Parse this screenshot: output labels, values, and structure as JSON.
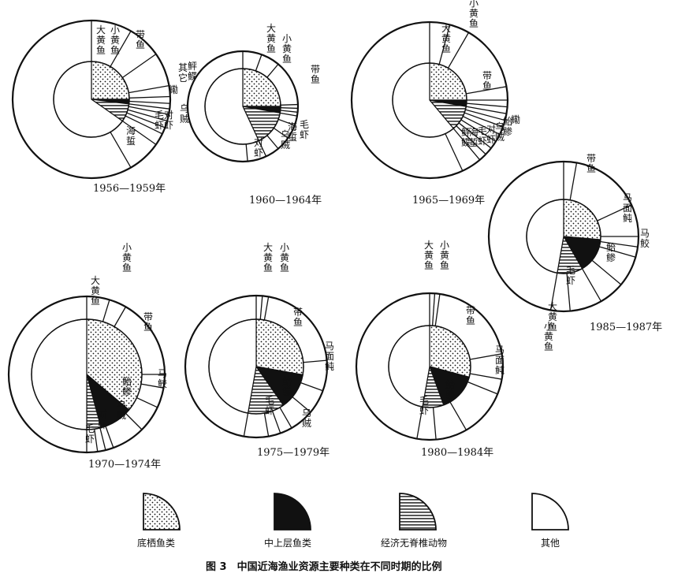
{
  "figure": {
    "caption": "图 3　中国近海渔业资源主要种类在不同时期的比例"
  },
  "legend": [
    {
      "key": "demersal",
      "label": "底栖鱼类",
      "pattern": "dots"
    },
    {
      "key": "pelagic",
      "label": "中上层鱼类",
      "pattern": "solid"
    },
    {
      "key": "invertebrate",
      "label": "经济无脊椎动物",
      "pattern": "hlines"
    },
    {
      "key": "other",
      "label": "其他",
      "pattern": "empty"
    }
  ],
  "chart_data": [
    {
      "type": "pie",
      "period": "1956—1959年",
      "inner": [
        {
          "group": "demersal",
          "start": 0,
          "end": 90
        },
        {
          "group": "pelagic",
          "start": 90,
          "end": 97
        },
        {
          "group": "invertebrate",
          "start": 97,
          "end": 125
        },
        {
          "group": "other",
          "start": 125,
          "end": 360
        }
      ],
      "outer_boundaries": [
        0,
        30,
        55,
        80,
        88,
        93,
        97,
        101,
        106,
        111,
        116,
        125,
        150
      ],
      "labels": [
        "大黄鱼",
        "小黄鱼",
        "带鱼",
        "鲆鲽",
        "其它",
        "鳓",
        "乌贼",
        "对虾",
        "毛虾",
        "海蜇"
      ]
    },
    {
      "type": "pie",
      "period": "1960—1964年",
      "inner": [
        {
          "group": "demersal",
          "start": 0,
          "end": 90
        },
        {
          "group": "pelagic",
          "start": 90,
          "end": 100
        },
        {
          "group": "invertebrate",
          "start": 100,
          "end": 155
        },
        {
          "group": "other",
          "start": 155,
          "end": 360
        }
      ],
      "outer_boundaries": [
        0,
        20,
        40,
        88,
        92,
        96,
        100,
        110,
        125,
        140,
        155,
        175
      ],
      "labels": [
        "大黄鱼",
        "小黄鱼",
        "带鱼",
        "毛虾",
        "海蜇",
        "乌贼",
        "对虾"
      ]
    },
    {
      "type": "pie",
      "period": "1965—1969年",
      "inner": [
        {
          "group": "demersal",
          "start": 0,
          "end": 90
        },
        {
          "group": "pelagic",
          "start": 90,
          "end": 100
        },
        {
          "group": "invertebrate",
          "start": 100,
          "end": 140
        },
        {
          "group": "other",
          "start": 140,
          "end": 360
        }
      ],
      "outer_boundaries": [
        0,
        15,
        30,
        80,
        90,
        95,
        100,
        105,
        110,
        116,
        122,
        128,
        134,
        140,
        155
      ],
      "labels": [
        "小黄鱼",
        "大黄鱼",
        "带鱼",
        "鳓",
        "鲐鲹",
        "乌贼",
        "对虾",
        "毛虾",
        "海蜇",
        "鲆鲽"
      ]
    },
    {
      "type": "pie",
      "period": "1985—1987年",
      "inner": [
        {
          "group": "demersal",
          "start": 0,
          "end": 95
        },
        {
          "group": "pelagic",
          "start": 95,
          "end": 150
        },
        {
          "group": "invertebrate",
          "start": 150,
          "end": 190
        },
        {
          "group": "other",
          "start": 190,
          "end": 360
        }
      ],
      "outer_boundaries": [
        0,
        10,
        65,
        90,
        98,
        106,
        130,
        150,
        175,
        190
      ],
      "labels": [
        "带鱼",
        "马面鲀",
        "马鲛",
        "鲐鲹",
        "毛虾",
        "大黄鱼",
        "小黄鱼"
      ]
    },
    {
      "type": "pie",
      "period": "1970—1974年",
      "inner": [
        {
          "group": "demersal",
          "start": 0,
          "end": 130
        },
        {
          "group": "pelagic",
          "start": 130,
          "end": 165
        },
        {
          "group": "invertebrate",
          "start": 165,
          "end": 180
        },
        {
          "group": "other",
          "start": 180,
          "end": 360
        }
      ],
      "outer_boundaries": [
        0,
        17,
        30,
        90,
        100,
        115,
        135,
        160,
        166,
        172,
        180
      ],
      "labels": [
        "大黄鱼",
        "小黄鱼",
        "带鱼",
        "马鲛",
        "鲐鲹",
        "乌贼",
        "对虾",
        "毛虾"
      ]
    },
    {
      "type": "pie",
      "period": "1975—1979年",
      "inner": [
        {
          "group": "demersal",
          "start": 0,
          "end": 100
        },
        {
          "group": "pelagic",
          "start": 100,
          "end": 145
        },
        {
          "group": "invertebrate",
          "start": 145,
          "end": 190
        },
        {
          "group": "other",
          "start": 190,
          "end": 360
        }
      ],
      "outer_boundaries": [
        0,
        5,
        10,
        85,
        110,
        130,
        150,
        160,
        170,
        190
      ],
      "labels": [
        "大黄鱼",
        "小黄鱼",
        "带鱼",
        "马面鲀",
        "鲐鲹",
        "毛虾",
        "乌贼"
      ]
    },
    {
      "type": "pie",
      "period": "1980—1984年",
      "inner": [
        {
          "group": "demersal",
          "start": 0,
          "end": 105
        },
        {
          "group": "pelagic",
          "start": 105,
          "end": 160
        },
        {
          "group": "invertebrate",
          "start": 160,
          "end": 190
        },
        {
          "group": "other",
          "start": 190,
          "end": 360
        }
      ],
      "outer_boundaries": [
        0,
        4,
        8,
        80,
        100,
        112,
        150,
        175,
        190
      ],
      "labels": [
        "大黄鱼",
        "小黄鱼",
        "带鱼",
        "马面鲀",
        "鲐鲹",
        "毛虾"
      ]
    }
  ]
}
